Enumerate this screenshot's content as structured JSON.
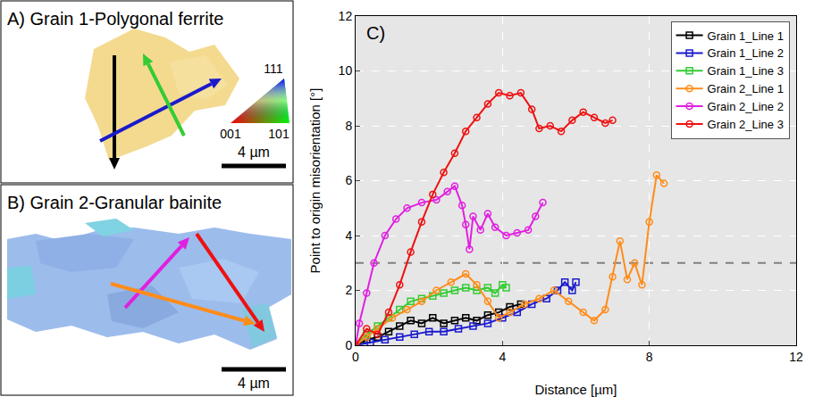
{
  "panels": [
    {
      "title": "A) Grain 1-Polygonal ferrite",
      "scale_bar": "4 µm",
      "ipf_key": {
        "top": "111",
        "left": "001",
        "right": "101"
      }
    },
    {
      "title": "B) Grain 2-Granular bainite",
      "scale_bar": "4 µm"
    }
  ],
  "chart_data": {
    "type": "line",
    "panel_label": "C)",
    "x_label": "Distance [µm]",
    "y_label": "Point to origin misorientation [°]",
    "xlim": [
      0,
      12
    ],
    "xticks": [
      0,
      4,
      8,
      12
    ],
    "ylim": [
      0,
      12
    ],
    "yticks": [
      0,
      2,
      4,
      6,
      8,
      10,
      12
    ],
    "grid": true,
    "legend": "top right",
    "hline": {
      "y": 3,
      "color": "#808080",
      "line_style": "dash"
    },
    "series": [
      {
        "name": "Grain 1_Line 1",
        "color": "#000000",
        "marker": "square",
        "x": [
          0,
          0.3,
          0.6,
          0.9,
          1.2,
          1.5,
          1.8,
          2.1,
          2.4,
          2.7,
          3.0,
          3.3,
          3.6,
          3.9,
          4.2,
          4.5
        ],
        "values": [
          0,
          0.2,
          0.3,
          0.5,
          0.7,
          0.9,
          0.8,
          1.0,
          0.8,
          0.9,
          1.0,
          0.9,
          1.1,
          1.2,
          1.4,
          1.5
        ]
      },
      {
        "name": "Grain 1_Line 2",
        "color": "#1a1acc",
        "marker": "square",
        "x": [
          0,
          0.4,
          0.8,
          1.2,
          1.6,
          2.0,
          2.4,
          2.8,
          3.2,
          3.6,
          4.0,
          4.4,
          4.8,
          5.2,
          5.5,
          5.7,
          5.9,
          6.0
        ],
        "values": [
          0,
          0.1,
          0.2,
          0.3,
          0.4,
          0.5,
          0.5,
          0.6,
          0.7,
          0.8,
          1.0,
          1.2,
          1.5,
          1.7,
          2.0,
          2.3,
          2.0,
          2.3
        ]
      },
      {
        "name": "Grain 1_Line 3",
        "color": "#33cc33",
        "marker": "square",
        "x": [
          0,
          0.3,
          0.6,
          0.9,
          1.2,
          1.5,
          1.8,
          2.1,
          2.4,
          2.7,
          3.0,
          3.3,
          3.6,
          3.8,
          4.0,
          4.1
        ],
        "values": [
          0,
          0.4,
          0.7,
          1.0,
          1.3,
          1.6,
          1.7,
          1.8,
          1.9,
          2.0,
          2.1,
          2.0,
          2.1,
          1.9,
          2.2,
          2.1
        ]
      },
      {
        "name": "Grain 2_Line 1",
        "color": "#ff8c1a",
        "marker": "circle",
        "x": [
          0,
          0.3,
          0.6,
          1.0,
          1.4,
          1.8,
          2.2,
          2.6,
          3.0,
          3.3,
          3.6,
          3.9,
          4.2,
          4.6,
          5.0,
          5.4,
          5.8,
          6.2,
          6.5,
          6.8,
          7.0,
          7.2,
          7.4,
          7.6,
          7.8,
          8.0,
          8.2,
          8.4
        ],
        "values": [
          0,
          0.3,
          0.6,
          1.0,
          1.3,
          1.6,
          2.0,
          2.3,
          2.6,
          2.2,
          1.6,
          1.0,
          1.2,
          1.5,
          1.7,
          2.0,
          1.6,
          1.2,
          0.9,
          1.3,
          2.5,
          3.8,
          2.4,
          3.0,
          2.2,
          4.5,
          6.2,
          5.9
        ]
      },
      {
        "name": "Grain 2_Line 2",
        "color": "#e020e0",
        "marker": "circle",
        "x": [
          0,
          0.1,
          0.3,
          0.5,
          0.8,
          1.1,
          1.4,
          1.8,
          2.2,
          2.5,
          2.7,
          2.9,
          3.0,
          3.1,
          3.2,
          3.4,
          3.6,
          3.8,
          4.1,
          4.4,
          4.7,
          4.9,
          5.1
        ],
        "values": [
          0,
          0.8,
          1.9,
          3.0,
          4.0,
          4.6,
          5.0,
          5.2,
          5.3,
          5.6,
          5.8,
          5.1,
          4.4,
          3.5,
          4.7,
          4.2,
          4.8,
          4.3,
          4.0,
          4.1,
          4.2,
          4.7,
          5.2
        ]
      },
      {
        "name": "Grain 2_Line 3",
        "color": "#ee1111",
        "marker": "circle",
        "x": [
          0,
          0.3,
          0.6,
          0.9,
          1.2,
          1.5,
          1.8,
          2.1,
          2.4,
          2.7,
          3.0,
          3.3,
          3.6,
          3.9,
          4.2,
          4.5,
          4.8,
          5.0,
          5.3,
          5.6,
          5.9,
          6.2,
          6.5,
          6.8,
          7.0
        ],
        "values": [
          0,
          0.6,
          0.4,
          1.2,
          2.2,
          3.4,
          4.5,
          5.5,
          6.3,
          7.0,
          7.8,
          8.3,
          8.8,
          9.2,
          9.1,
          9.2,
          8.6,
          7.9,
          8.0,
          7.8,
          8.2,
          8.5,
          8.3,
          8.1,
          8.2
        ]
      }
    ]
  }
}
